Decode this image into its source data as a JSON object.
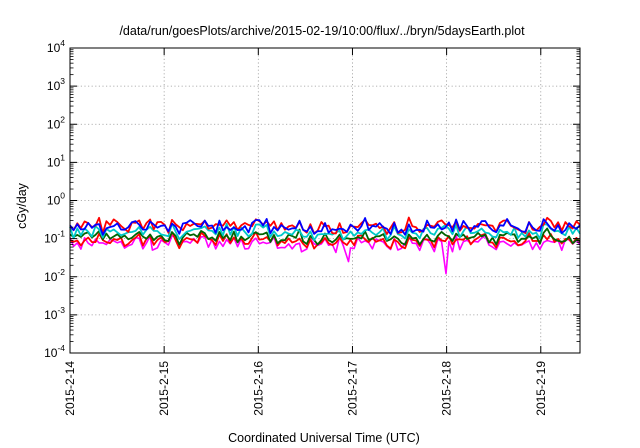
{
  "chart_data": {
    "type": "line",
    "title": "/data/run/goesPlots/archive/2015-02-19/10:00/flux/../bryn/5daysEarth.plot",
    "xlabel": "Coordinated Universal Time (UTC)",
    "ylabel": "cGy/day",
    "yscale": "log",
    "ylim": [
      0.0001,
      10000
    ],
    "xlim": [
      "2015-02-14T00:00",
      "2015-02-19T10:00"
    ],
    "grid": true,
    "x_ticks": [
      "2015-2-14",
      "2015-2-15",
      "2015-2-16",
      "2015-2-17",
      "2015-2-18",
      "2015-2-19"
    ],
    "y_ticks": [
      {
        "base": "10",
        "exp": "-4",
        "value": 0.0001
      },
      {
        "base": "10",
        "exp": "-3",
        "value": 0.001
      },
      {
        "base": "10",
        "exp": "-2",
        "value": 0.01
      },
      {
        "base": "10",
        "exp": "-1",
        "value": 0.1
      },
      {
        "base": "10",
        "exp": "0",
        "value": 1
      },
      {
        "base": "10",
        "exp": "1",
        "value": 10
      },
      {
        "base": "10",
        "exp": "2",
        "value": 100
      },
      {
        "base": "10",
        "exp": "3",
        "value": 1000
      },
      {
        "base": "10",
        "exp": "4",
        "value": 10000
      }
    ],
    "series": [
      {
        "color": "#ff00ff",
        "base": 0.075,
        "amp": 0.25,
        "dips": [
          {
            "x": "2015-02-17T23:50",
            "y": 0.012
          },
          {
            "x": "2015-02-16T11:00",
            "y": 0.045
          },
          {
            "x": "2015-02-16T23:00",
            "y": 0.025
          },
          {
            "x": "2015-02-14T21:00",
            "y": 0.05
          }
        ]
      },
      {
        "color": "#ff0000",
        "base": 0.09,
        "amp": 0.2,
        "dips": []
      },
      {
        "color": "#006400",
        "base": 0.11,
        "amp": 0.2,
        "dips": []
      },
      {
        "color": "#00c8c8",
        "base": 0.15,
        "amp": 0.22,
        "dips": []
      },
      {
        "color": "#ff0000",
        "base": 0.22,
        "amp": 0.22,
        "dips": []
      },
      {
        "color": "#0000ff",
        "base": 0.2,
        "amp": 0.25,
        "dips": []
      }
    ]
  }
}
